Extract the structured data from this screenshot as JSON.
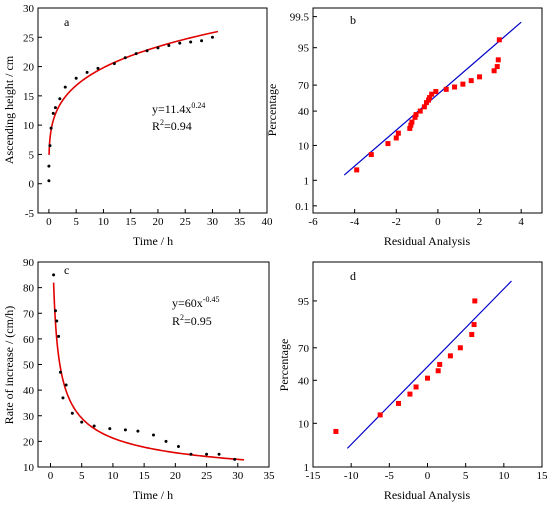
{
  "chart_data": [
    {
      "panel": "a",
      "type": "scatter",
      "xlabel": "Time / h",
      "ylabel": "Ascending height / cm",
      "xlim": [
        -2,
        40
      ],
      "ylim": [
        -5,
        30
      ],
      "xticks": [
        "0",
        "5",
        "10",
        "15",
        "20",
        "25",
        "30",
        "35",
        "40"
      ],
      "yticks": [
        "-5",
        "0",
        "5",
        "10",
        "15",
        "20",
        "25",
        "30"
      ],
      "annotation": {
        "eq_prefix": "y=11.4x",
        "eq_exp": "0.24",
        "r2_prefix": "R",
        "r2_sup": "2",
        "r2_value": "=0.94"
      },
      "colors": {
        "points": "#000000",
        "fit": "#e00000"
      },
      "series": [
        {
          "kind": "points",
          "x": [
            0,
            0,
            0.2,
            0.4,
            0.8,
            1.2,
            2,
            3,
            5,
            7,
            9,
            12,
            14,
            16,
            18,
            20,
            22,
            24,
            26,
            28,
            30
          ],
          "y": [
            0.5,
            3,
            6.5,
            9.5,
            12,
            13,
            14.5,
            16.5,
            18,
            19,
            19.7,
            20.5,
            21.5,
            22.2,
            22.7,
            23.2,
            23.6,
            24,
            24.2,
            24.4,
            25
          ]
        },
        {
          "kind": "fit",
          "model": "power",
          "a": 11.4,
          "b": 0.24,
          "x_range": [
            0.03,
            31
          ]
        }
      ]
    },
    {
      "panel": "b",
      "type": "scatter",
      "xlabel": "Residual Analysis",
      "ylabel": "Percentage",
      "xlim": [
        -6,
        5
      ],
      "yscale": "probability",
      "xticks": [
        "-6",
        "-4",
        "-2",
        "0",
        "2",
        "4"
      ],
      "yticks": [
        "0.1",
        "1",
        "10",
        "40",
        "70",
        "95",
        "99.5"
      ],
      "ytick_values": [
        0.1,
        1,
        10,
        40,
        70,
        95,
        99.5
      ],
      "colors": {
        "points": "#ff0000",
        "line": "#0000cc"
      },
      "series": [
        {
          "kind": "points",
          "x": [
            -3.9,
            -3.2,
            -2.4,
            -2.0,
            -1.9,
            -1.35,
            -1.3,
            -1.25,
            -1.1,
            -1.05,
            -0.85,
            -0.65,
            -0.55,
            -0.45,
            -0.4,
            -0.3,
            -0.1,
            0.4,
            0.8,
            1.2,
            1.6,
            2.0,
            2.7,
            2.85,
            2.9,
            2.95
          ],
          "y": [
            2.2,
            6,
            11,
            14.5,
            18,
            22,
            25,
            28,
            33,
            36,
            40,
            45,
            50,
            53,
            56,
            60,
            63,
            65.5,
            68,
            71,
            74.5,
            78,
            83,
            86,
            90,
            97
          ]
        },
        {
          "kind": "line",
          "x": [
            -4.5,
            4.0
          ],
          "y": [
            1.5,
            99.2
          ]
        }
      ]
    },
    {
      "panel": "c",
      "type": "scatter",
      "xlabel": "Time / h",
      "ylabel": "Rate of increase / (cm/h)",
      "xlim": [
        -2,
        35
      ],
      "ylim": [
        10,
        90
      ],
      "xticks": [
        "0",
        "5",
        "10",
        "15",
        "20",
        "25",
        "30",
        "35"
      ],
      "yticks": [
        "10",
        "20",
        "30",
        "40",
        "50",
        "60",
        "70",
        "80",
        "90"
      ],
      "annotation": {
        "eq_prefix": "y=60x",
        "eq_exp": "-0.45",
        "r2_prefix": "R",
        "r2_sup": "2",
        "r2_value": "=0.95"
      },
      "colors": {
        "points": "#000000",
        "fit": "#e00000"
      },
      "series": [
        {
          "kind": "points",
          "x": [
            0.5,
            0.8,
            1,
            1.3,
            1.6,
            2,
            2.5,
            3.5,
            5,
            7,
            9.5,
            12,
            14,
            16.5,
            18.5,
            20.5,
            22.5,
            25,
            27,
            29.5
          ],
          "y": [
            85,
            71,
            67,
            61,
            47,
            37,
            42,
            31,
            27.5,
            26,
            25,
            24.5,
            24,
            22.5,
            20,
            18,
            15,
            15,
            15,
            13
          ]
        },
        {
          "kind": "fit",
          "model": "power",
          "a": 60,
          "b": -0.45,
          "x_range": [
            0.5,
            31
          ]
        }
      ]
    },
    {
      "panel": "d",
      "type": "scatter",
      "xlabel": "Residual Analysis",
      "ylabel": "Percentage",
      "xlim": [
        -15,
        15
      ],
      "yscale": "probability",
      "xticks": [
        "-15",
        "-10",
        "-5",
        "0",
        "5",
        "10",
        "15"
      ],
      "yticks": [
        "1",
        "10",
        "40",
        "70",
        "95"
      ],
      "ytick_values": [
        1,
        10,
        40,
        70,
        95
      ],
      "colors": {
        "points": "#ff0000",
        "line": "#0000cc"
      },
      "series": [
        {
          "kind": "points",
          "x": [
            -12,
            -6.2,
            -3.8,
            -2.3,
            -1.5,
            0,
            1.4,
            1.6,
            3,
            4.3,
            5.8,
            6.1,
            6.2
          ],
          "y": [
            7,
            14,
            21,
            28,
            34,
            42,
            49,
            55,
            63,
            70,
            80,
            86,
            95
          ]
        },
        {
          "kind": "line",
          "x": [
            -10.5,
            11
          ],
          "y": [
            3,
            98.3
          ]
        }
      ]
    }
  ]
}
